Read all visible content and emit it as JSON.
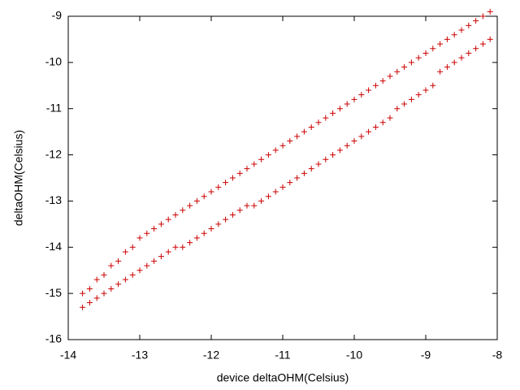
{
  "chart_data": {
    "type": "scatter",
    "xlabel": "device deltaOHM(Celsius)",
    "ylabel": "deltaOHM(Celsius)",
    "x": [
      -13.8,
      -13.7,
      -13.6,
      -13.5,
      -13.4,
      -13.3,
      -13.2,
      -13.1,
      -13.0,
      -12.9,
      -12.8,
      -12.7,
      -12.6,
      -12.5,
      -12.4,
      -12.3,
      -12.2,
      -12.1,
      -12.0,
      -11.9,
      -11.8,
      -11.7,
      -11.6,
      -11.5,
      -11.4,
      -11.3,
      -11.2,
      -11.1,
      -11.0,
      -10.9,
      -10.8,
      -10.7,
      -10.6,
      -10.5,
      -10.4,
      -10.3,
      -10.2,
      -10.1,
      -10.0,
      -9.9,
      -9.8,
      -9.7,
      -9.6,
      -9.5,
      -9.4,
      -9.3,
      -9.2,
      -9.1,
      -9.0,
      -8.9,
      -8.8,
      -8.7,
      -8.6,
      -8.5,
      -8.4,
      -8.3,
      -8.2,
      -8.1
    ],
    "series": [
      {
        "color": "#cc0000",
        "values": [
          -15.0,
          -14.9,
          -14.7,
          -14.6,
          -14.4,
          -14.3,
          -14.1,
          -14.0,
          -13.8,
          -13.7,
          -13.6,
          -13.5,
          -13.4,
          -13.3,
          -13.2,
          -13.1,
          -13.0,
          -12.9,
          -12.8,
          -12.7,
          -12.6,
          -12.5,
          -12.4,
          -12.3,
          -12.2,
          -12.1,
          -12.0,
          -11.9,
          -11.8,
          -11.7,
          -11.6,
          -11.5,
          -11.4,
          -11.3,
          -11.2,
          -11.1,
          -11.0,
          -10.9,
          -10.8,
          -10.7,
          -10.6,
          -10.5,
          -10.4,
          -10.3,
          -10.2,
          -10.1,
          -10.0,
          -9.9,
          -9.8,
          -9.7,
          -9.6,
          -9.5,
          -9.4,
          -9.3,
          -9.2,
          -9.1,
          -9.0,
          -8.9
        ]
      },
      {
        "color": "#cc0000",
        "values": [
          -15.3,
          -15.2,
          -15.1,
          -15.0,
          -14.9,
          -14.8,
          -14.7,
          -14.6,
          -14.5,
          -14.4,
          -14.3,
          -14.2,
          -14.1,
          -14.0,
          -14.0,
          -13.9,
          -13.8,
          -13.7,
          -13.6,
          -13.5,
          -13.4,
          -13.3,
          -13.2,
          -13.1,
          -13.1,
          -13.0,
          -12.9,
          -12.8,
          -12.7,
          -12.6,
          -12.5,
          -12.4,
          -12.3,
          -12.2,
          -12.1,
          -12.0,
          -11.9,
          -11.8,
          -11.7,
          -11.6,
          -11.5,
          -11.4,
          -11.3,
          -11.2,
          -11.0,
          -10.9,
          -10.8,
          -10.7,
          -10.6,
          -10.5,
          -10.2,
          -10.1,
          -10.0,
          -9.9,
          -9.8,
          -9.7,
          -9.6,
          -9.5
        ]
      }
    ],
    "xlim": [
      -14,
      -8
    ],
    "xticks": [
      -14,
      -13,
      -12,
      -11,
      -10,
      -9,
      -8
    ],
    "ylim": [
      -16,
      -9
    ],
    "yticks": [
      -16,
      -15,
      -14,
      -13,
      -12,
      -11,
      -10,
      -9
    ]
  }
}
